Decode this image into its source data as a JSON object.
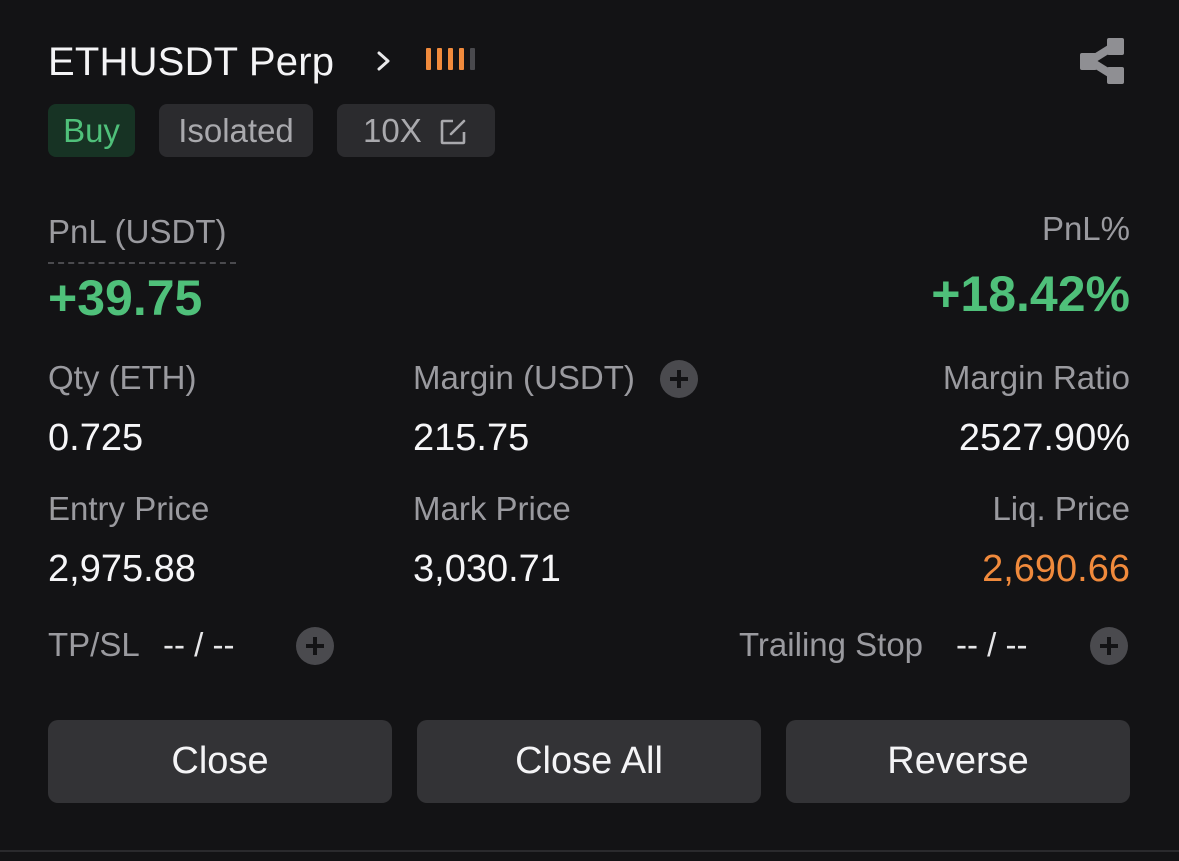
{
  "header": {
    "symbol": "ETHUSDT Perp",
    "signal_bars": 5,
    "signal_active": 4,
    "accent_color": "#f08a3c"
  },
  "tags": {
    "side": "Buy",
    "margin_mode": "Isolated",
    "leverage": "10X"
  },
  "pnl": {
    "label": "PnL (USDT)",
    "value": "+39.75",
    "pct_label": "PnL%",
    "pct_value": "+18.42%",
    "color": "#4fc07a"
  },
  "stats": {
    "qty_label": "Qty (ETH)",
    "qty_value": "0.725",
    "margin_label": "Margin (USDT)",
    "margin_value": "215.75",
    "margin_ratio_label": "Margin Ratio",
    "margin_ratio_value": "2527.90%",
    "entry_label": "Entry Price",
    "entry_value": "2,975.88",
    "mark_label": "Mark Price",
    "mark_value": "3,030.71",
    "liq_label": "Liq. Price",
    "liq_value": "2,690.66",
    "liq_color": "#f08a3c"
  },
  "orders": {
    "tpsl_label": "TP/SL",
    "tpsl_value": "-- / --",
    "trailing_label": "Trailing Stop",
    "trailing_value": "-- / --"
  },
  "actions": {
    "close": "Close",
    "close_all": "Close All",
    "reverse": "Reverse"
  },
  "icons": {
    "chevron": "chevron-right-icon",
    "share": "share-icon",
    "edit": "edit-icon",
    "plus": "plus-circle-icon"
  }
}
